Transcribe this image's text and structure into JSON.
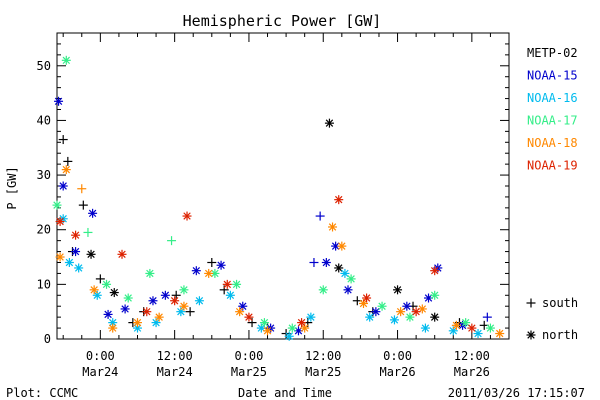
{
  "chart_data": {
    "type": "scatter",
    "title": "Hemispheric Power [GW]",
    "xlabel": "Date and Time",
    "ylabel": "P [GW]",
    "ylim": [
      0,
      56
    ],
    "xlim": [
      "2011-03-23T17:00",
      "2011-03-26T18:00"
    ],
    "y_ticks": [
      0,
      10,
      20,
      30,
      40,
      50
    ],
    "x_ticks": [
      {
        "at": "2011-03-24T00:00",
        "line1": "0:00",
        "line2": "Mar24"
      },
      {
        "at": "2011-03-24T12:00",
        "line1": "12:00",
        "line2": "Mar24"
      },
      {
        "at": "2011-03-25T00:00",
        "line1": "0:00",
        "line2": "Mar25"
      },
      {
        "at": "2011-03-25T12:00",
        "line1": "12:00",
        "line2": "Mar25"
      },
      {
        "at": "2011-03-26T00:00",
        "line1": "0:00",
        "line2": "Mar26"
      },
      {
        "at": "2011-03-26T12:00",
        "line1": "12:00",
        "line2": "Mar26"
      }
    ],
    "grid": false,
    "legend_position": "right",
    "symbol_legend": [
      {
        "symbol": "+",
        "label": "south"
      },
      {
        "symbol": "*",
        "label": "north"
      }
    ],
    "series": [
      {
        "name": "METP-02",
        "color": "#000000",
        "points": [
          {
            "t": "2011-03-23T18:00",
            "p": 36.5,
            "m": "+"
          },
          {
            "t": "2011-03-23T18:45",
            "p": 32.5,
            "m": "+"
          },
          {
            "t": "2011-03-23T19:30",
            "p": 16.0,
            "m": "+"
          },
          {
            "t": "2011-03-23T21:15",
            "p": 24.5,
            "m": "+"
          },
          {
            "t": "2011-03-23T22:30",
            "p": 15.5,
            "m": "*"
          },
          {
            "t": "2011-03-24T00:00",
            "p": 11.0,
            "m": "+"
          },
          {
            "t": "2011-03-24T02:15",
            "p": 8.5,
            "m": "*"
          },
          {
            "t": "2011-03-24T05:15",
            "p": 3.0,
            "m": "+"
          },
          {
            "t": "2011-03-24T07:00",
            "p": 5.0,
            "m": "+"
          },
          {
            "t": "2011-03-24T12:15",
            "p": 8.0,
            "m": "+"
          },
          {
            "t": "2011-03-24T14:30",
            "p": 5.0,
            "m": "+"
          },
          {
            "t": "2011-03-24T18:00",
            "p": 14.0,
            "m": "+"
          },
          {
            "t": "2011-03-24T20:00",
            "p": 9.0,
            "m": "+"
          },
          {
            "t": "2011-03-25T00:30",
            "p": 3.0,
            "m": "+"
          },
          {
            "t": "2011-03-25T03:00",
            "p": 2.0,
            "m": "+"
          },
          {
            "t": "2011-03-25T06:00",
            "p": 1.0,
            "m": "+"
          },
          {
            "t": "2011-03-25T09:30",
            "p": 3.0,
            "m": "+"
          },
          {
            "t": "2011-03-25T13:00",
            "p": 39.5,
            "m": "*"
          },
          {
            "t": "2011-03-25T14:30",
            "p": 13.0,
            "m": "*"
          },
          {
            "t": "2011-03-25T17:30",
            "p": 7.0,
            "m": "+"
          },
          {
            "t": "2011-03-25T20:00",
            "p": 5.0,
            "m": "+"
          },
          {
            "t": "2011-03-26T00:00",
            "p": 9.0,
            "m": "*"
          },
          {
            "t": "2011-03-26T02:30",
            "p": 6.0,
            "m": "+"
          },
          {
            "t": "2011-03-26T06:00",
            "p": 4.0,
            "m": "*"
          },
          {
            "t": "2011-03-26T10:00",
            "p": 3.0,
            "m": "+"
          },
          {
            "t": "2011-03-26T14:00",
            "p": 2.5,
            "m": "+"
          }
        ]
      },
      {
        "name": "NOAA-15",
        "color": "#0000cc",
        "points": [
          {
            "t": "2011-03-23T17:15",
            "p": 43.5,
            "m": "*"
          },
          {
            "t": "2011-03-23T18:00",
            "p": 28.0,
            "m": "*"
          },
          {
            "t": "2011-03-23T20:00",
            "p": 16.0,
            "m": "*"
          },
          {
            "t": "2011-03-23T22:45",
            "p": 23.0,
            "m": "*"
          },
          {
            "t": "2011-03-24T01:15",
            "p": 4.5,
            "m": "*"
          },
          {
            "t": "2011-03-24T04:00",
            "p": 5.5,
            "m": "*"
          },
          {
            "t": "2011-03-24T08:30",
            "p": 7.0,
            "m": "*"
          },
          {
            "t": "2011-03-24T10:30",
            "p": 8.0,
            "m": "*"
          },
          {
            "t": "2011-03-24T15:30",
            "p": 12.5,
            "m": "*"
          },
          {
            "t": "2011-03-24T19:30",
            "p": 13.5,
            "m": "*"
          },
          {
            "t": "2011-03-24T23:00",
            "p": 6.0,
            "m": "*"
          },
          {
            "t": "2011-03-25T03:30",
            "p": 2.0,
            "m": "*"
          },
          {
            "t": "2011-03-25T08:00",
            "p": 1.5,
            "m": "*"
          },
          {
            "t": "2011-03-25T10:30",
            "p": 14.0,
            "m": "+"
          },
          {
            "t": "2011-03-25T11:30",
            "p": 22.5,
            "m": "+"
          },
          {
            "t": "2011-03-25T12:30",
            "p": 14.0,
            "m": "*"
          },
          {
            "t": "2011-03-25T14:00",
            "p": 17.0,
            "m": "*"
          },
          {
            "t": "2011-03-25T16:00",
            "p": 9.0,
            "m": "*"
          },
          {
            "t": "2011-03-25T20:30",
            "p": 5.0,
            "m": "*"
          },
          {
            "t": "2011-03-26T01:30",
            "p": 6.0,
            "m": "*"
          },
          {
            "t": "2011-03-26T05:00",
            "p": 7.5,
            "m": "*"
          },
          {
            "t": "2011-03-26T06:30",
            "p": 13.0,
            "m": "*"
          },
          {
            "t": "2011-03-26T10:30",
            "p": 2.5,
            "m": "*"
          },
          {
            "t": "2011-03-26T14:30",
            "p": 4.0,
            "m": "+"
          }
        ]
      },
      {
        "name": "NOAA-16",
        "color": "#00bbee",
        "points": [
          {
            "t": "2011-03-23T18:00",
            "p": 22.0,
            "m": "*"
          },
          {
            "t": "2011-03-23T19:00",
            "p": 14.0,
            "m": "*"
          },
          {
            "t": "2011-03-23T20:30",
            "p": 13.0,
            "m": "*"
          },
          {
            "t": "2011-03-23T23:30",
            "p": 8.0,
            "m": "*"
          },
          {
            "t": "2011-03-24T02:00",
            "p": 3.0,
            "m": "*"
          },
          {
            "t": "2011-03-24T06:00",
            "p": 2.0,
            "m": "*"
          },
          {
            "t": "2011-03-24T09:00",
            "p": 3.0,
            "m": "*"
          },
          {
            "t": "2011-03-24T13:00",
            "p": 5.0,
            "m": "*"
          },
          {
            "t": "2011-03-24T16:00",
            "p": 7.0,
            "m": "*"
          },
          {
            "t": "2011-03-24T21:00",
            "p": 8.0,
            "m": "*"
          },
          {
            "t": "2011-03-25T02:00",
            "p": 2.0,
            "m": "*"
          },
          {
            "t": "2011-03-25T06:30",
            "p": 0.5,
            "m": "*"
          },
          {
            "t": "2011-03-25T10:00",
            "p": 4.0,
            "m": "*"
          },
          {
            "t": "2011-03-25T15:30",
            "p": 12.0,
            "m": "*"
          },
          {
            "t": "2011-03-25T19:30",
            "p": 4.0,
            "m": "*"
          },
          {
            "t": "2011-03-25T23:30",
            "p": 3.5,
            "m": "*"
          },
          {
            "t": "2011-03-26T04:30",
            "p": 2.0,
            "m": "*"
          },
          {
            "t": "2011-03-26T09:00",
            "p": 1.5,
            "m": "*"
          },
          {
            "t": "2011-03-26T13:00",
            "p": 1.0,
            "m": "*"
          }
        ]
      },
      {
        "name": "NOAA-17",
        "color": "#33ee88",
        "points": [
          {
            "t": "2011-03-23T17:00",
            "p": 24.5,
            "m": "*"
          },
          {
            "t": "2011-03-23T18:30",
            "p": 51.0,
            "m": "*"
          },
          {
            "t": "2011-03-23T22:00",
            "p": 19.5,
            "m": "+"
          },
          {
            "t": "2011-03-24T01:00",
            "p": 10.0,
            "m": "*"
          },
          {
            "t": "2011-03-24T04:30",
            "p": 7.5,
            "m": "*"
          },
          {
            "t": "2011-03-24T08:00",
            "p": 12.0,
            "m": "*"
          },
          {
            "t": "2011-03-24T11:30",
            "p": 18.0,
            "m": "+"
          },
          {
            "t": "2011-03-24T13:30",
            "p": 9.0,
            "m": "*"
          },
          {
            "t": "2011-03-24T18:30",
            "p": 12.0,
            "m": "*"
          },
          {
            "t": "2011-03-24T22:00",
            "p": 10.0,
            "m": "*"
          },
          {
            "t": "2011-03-25T02:30",
            "p": 3.0,
            "m": "*"
          },
          {
            "t": "2011-03-25T07:00",
            "p": 2.0,
            "m": "*"
          },
          {
            "t": "2011-03-25T12:00",
            "p": 9.0,
            "m": "*"
          },
          {
            "t": "2011-03-25T16:30",
            "p": 11.0,
            "m": "*"
          },
          {
            "t": "2011-03-25T21:30",
            "p": 6.0,
            "m": "*"
          },
          {
            "t": "2011-03-26T02:00",
            "p": 4.0,
            "m": "*"
          },
          {
            "t": "2011-03-26T06:00",
            "p": 8.0,
            "m": "*"
          },
          {
            "t": "2011-03-26T11:00",
            "p": 3.0,
            "m": "*"
          },
          {
            "t": "2011-03-26T15:00",
            "p": 2.0,
            "m": "*"
          }
        ]
      },
      {
        "name": "NOAA-18",
        "color": "#ff8800",
        "points": [
          {
            "t": "2011-03-23T17:30",
            "p": 15.0,
            "m": "*"
          },
          {
            "t": "2011-03-23T18:30",
            "p": 31.0,
            "m": "*"
          },
          {
            "t": "2011-03-23T21:00",
            "p": 27.5,
            "m": "+"
          },
          {
            "t": "2011-03-23T23:00",
            "p": 9.0,
            "m": "*"
          },
          {
            "t": "2011-03-24T02:00",
            "p": 2.0,
            "m": "*"
          },
          {
            "t": "2011-03-24T06:00",
            "p": 3.0,
            "m": "*"
          },
          {
            "t": "2011-03-24T09:30",
            "p": 4.0,
            "m": "*"
          },
          {
            "t": "2011-03-24T13:30",
            "p": 6.0,
            "m": "*"
          },
          {
            "t": "2011-03-24T17:30",
            "p": 12.0,
            "m": "*"
          },
          {
            "t": "2011-03-24T22:30",
            "p": 5.0,
            "m": "*"
          },
          {
            "t": "2011-03-25T03:00",
            "p": 1.5,
            "m": "*"
          },
          {
            "t": "2011-03-25T09:00",
            "p": 2.0,
            "m": "*"
          },
          {
            "t": "2011-03-25T13:30",
            "p": 20.5,
            "m": "*"
          },
          {
            "t": "2011-03-25T15:00",
            "p": 17.0,
            "m": "*"
          },
          {
            "t": "2011-03-25T18:30",
            "p": 6.5,
            "m": "*"
          },
          {
            "t": "2011-03-26T00:30",
            "p": 5.0,
            "m": "*"
          },
          {
            "t": "2011-03-26T04:00",
            "p": 5.5,
            "m": "*"
          },
          {
            "t": "2011-03-26T09:30",
            "p": 2.5,
            "m": "*"
          },
          {
            "t": "2011-03-26T16:30",
            "p": 1.0,
            "m": "*"
          }
        ]
      },
      {
        "name": "NOAA-19",
        "color": "#dd2200",
        "points": [
          {
            "t": "2011-03-23T17:30",
            "p": 21.5,
            "m": "*"
          },
          {
            "t": "2011-03-23T20:00",
            "p": 19.0,
            "m": "*"
          },
          {
            "t": "2011-03-24T03:30",
            "p": 15.5,
            "m": "*"
          },
          {
            "t": "2011-03-24T07:30",
            "p": 5.0,
            "m": "*"
          },
          {
            "t": "2011-03-24T12:00",
            "p": 7.0,
            "m": "*"
          },
          {
            "t": "2011-03-24T14:00",
            "p": 22.5,
            "m": "*"
          },
          {
            "t": "2011-03-24T20:30",
            "p": 10.0,
            "m": "*"
          },
          {
            "t": "2011-03-25T00:00",
            "p": 4.0,
            "m": "*"
          },
          {
            "t": "2011-03-25T08:30",
            "p": 3.0,
            "m": "*"
          },
          {
            "t": "2011-03-25T14:30",
            "p": 25.5,
            "m": "*"
          },
          {
            "t": "2011-03-25T19:00",
            "p": 7.5,
            "m": "*"
          },
          {
            "t": "2011-03-26T03:00",
            "p": 5.0,
            "m": "*"
          },
          {
            "t": "2011-03-26T06:00",
            "p": 12.5,
            "m": "*"
          },
          {
            "t": "2011-03-26T12:00",
            "p": 2.0,
            "m": "*"
          }
        ]
      }
    ]
  },
  "footer": {
    "plot_credit": "Plot: CCMC",
    "timestamp": "2011/03/26 17:15:07"
  }
}
